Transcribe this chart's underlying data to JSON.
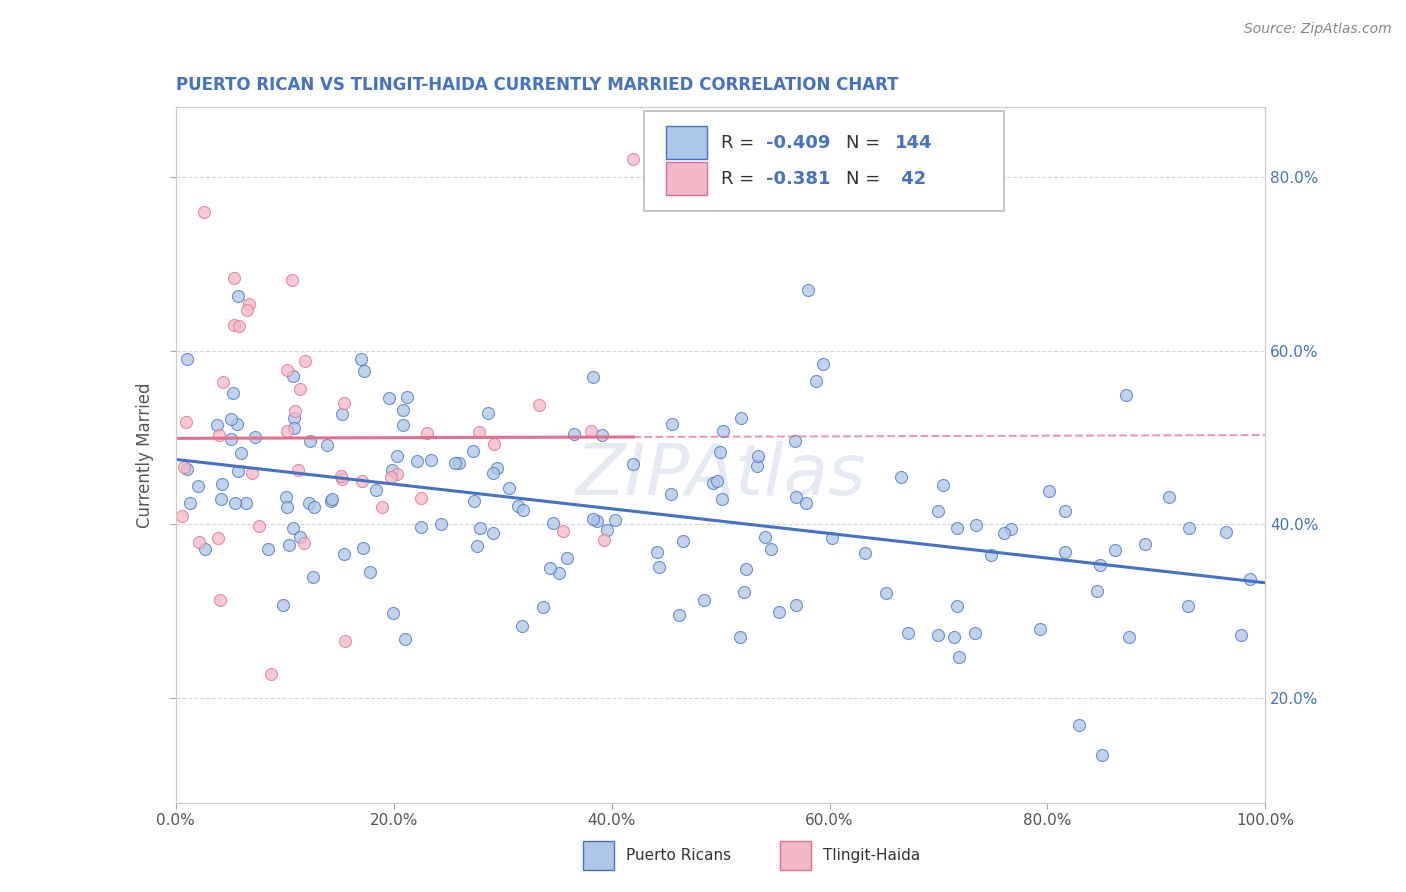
{
  "title": "PUERTO RICAN VS TLINGIT-HAIDA CURRENTLY MARRIED CORRELATION CHART",
  "source_text": "Source: ZipAtlas.com",
  "ylabel": "Currently Married",
  "xlim": [
    0.0,
    1.0
  ],
  "ylim": [
    0.08,
    0.88
  ],
  "xtick_labels": [
    "0.0%",
    "20.0%",
    "40.0%",
    "60.0%",
    "80.0%",
    "100.0%"
  ],
  "xtick_values": [
    0.0,
    0.2,
    0.4,
    0.6,
    0.8,
    1.0
  ],
  "ytick_labels": [
    "20.0%",
    "40.0%",
    "60.0%",
    "80.0%"
  ],
  "ytick_values": [
    0.2,
    0.4,
    0.6,
    0.8
  ],
  "blue_fill": "#aec6e8",
  "blue_edge": "#4472c4",
  "pink_fill": "#f4b8c8",
  "pink_edge": "#e07090",
  "blue_line": "#4472c4",
  "pink_line": "#e07090",
  "title_color": "#4472c4",
  "right_tick_color": "#4472c4",
  "source_color": "#888888",
  "background_color": "#ffffff",
  "grid_color": "#cccccc",
  "watermark_text": "ZIPAtlas",
  "watermark_color": "#d0d8e8",
  "legend_text_color": "#333333",
  "legend_value_color": "#4472c4",
  "r1": -0.409,
  "n1": 144,
  "r2": -0.381,
  "n2": 42,
  "seed_blue": 77,
  "seed_pink": 33
}
